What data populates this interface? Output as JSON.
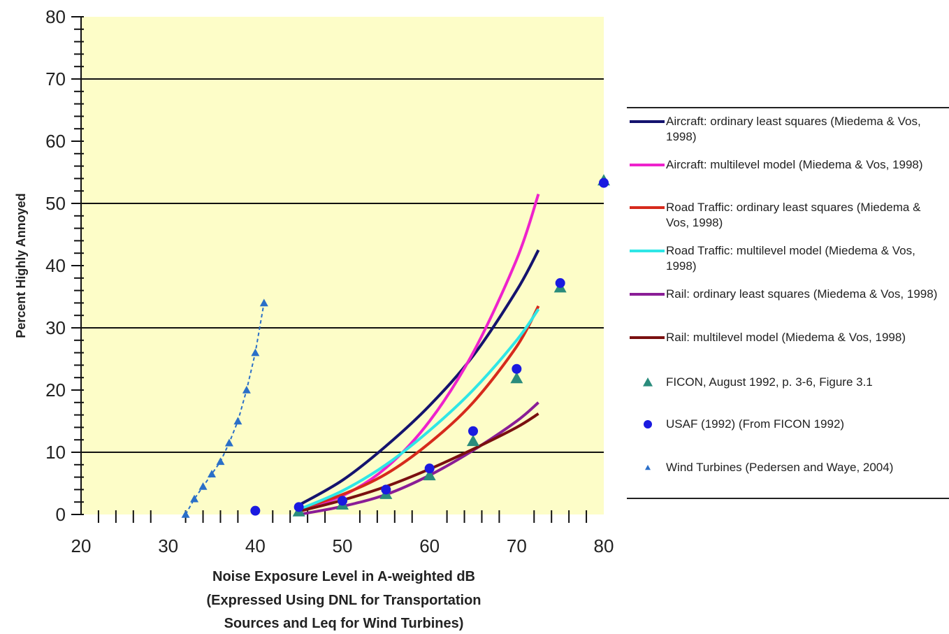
{
  "chart_data": {
    "type": "line",
    "xlabel_lines": [
      "Noise Exposure Level in A-weighted dB",
      "(Expressed Using DNL for Transportation",
      "Sources and Leq for Wind Turbines)"
    ],
    "ylabel": "Percent Highly Annoyed",
    "xlim": [
      20,
      80
    ],
    "ylim": [
      0,
      80
    ],
    "x_ticks": [
      20,
      30,
      40,
      50,
      60,
      70,
      80
    ],
    "y_ticks": [
      0,
      10,
      20,
      30,
      40,
      50,
      60,
      70,
      80
    ],
    "grid_y": [
      10,
      30,
      50,
      70
    ],
    "background": "#fdfdc8",
    "legend_position": "right",
    "series": [
      {
        "name": "Aircraft: ordinary least squares (Miedema & Vos, 1998)",
        "color": "#14136e",
        "style": "line",
        "x": [
          45,
          50,
          55,
          60,
          65,
          70,
          72.5
        ],
        "y": [
          1.5,
          5.5,
          11.0,
          17.5,
          25.5,
          36.0,
          42.5
        ]
      },
      {
        "name": "Aircraft: multilevel model (Miedema & Vos, 1998)",
        "color": "#ee22cc",
        "style": "line",
        "x": [
          45,
          50,
          55,
          60,
          65,
          70,
          72.5
        ],
        "y": [
          0.8,
          3.0,
          7.5,
          15.0,
          26.0,
          41.0,
          51.5
        ]
      },
      {
        "name": "Road Traffic: ordinary least squares (Miedema & Vos, 1998)",
        "color": "#d62a1c",
        "style": "line",
        "x": [
          45,
          50,
          55,
          60,
          65,
          70,
          72.5
        ],
        "y": [
          0.8,
          3.2,
          6.5,
          11.5,
          18.0,
          27.0,
          33.5
        ]
      },
      {
        "name": "Road Traffic: multilevel model (Miedema & Vos, 1998)",
        "color": "#2fe6e6",
        "style": "line",
        "x": [
          45,
          50,
          55,
          60,
          65,
          70,
          72.5
        ],
        "y": [
          0.8,
          3.8,
          8.0,
          13.5,
          20.0,
          28.0,
          33.0
        ]
      },
      {
        "name": "Rail: ordinary least squares (Miedema & Vos, 1998)",
        "color": "#8a1d96",
        "style": "line",
        "x": [
          45,
          50,
          55,
          60,
          65,
          70,
          72.5
        ],
        "y": [
          0.0,
          1.3,
          3.2,
          6.3,
          10.3,
          15.0,
          18.0
        ]
      },
      {
        "name": "Rail: multilevel model (Miedema & Vos, 1998)",
        "color": "#7a1010",
        "style": "line",
        "x": [
          45,
          50,
          55,
          60,
          65,
          70,
          72.5
        ],
        "y": [
          0.5,
          2.3,
          4.5,
          7.3,
          10.5,
          14.0,
          16.2
        ]
      },
      {
        "name": "FICON, August 1992, p. 3-6, Figure 3.1",
        "color": "#2a8c7c",
        "style": "triangle",
        "x": [
          45,
          50,
          55,
          60,
          65,
          70,
          75,
          80
        ],
        "y": [
          0.5,
          1.6,
          3.3,
          6.3,
          11.8,
          21.9,
          36.5,
          53.7
        ]
      },
      {
        "name": "USAF (1992) (From FICON 1992)",
        "color": "#1a1ae0",
        "style": "circle",
        "x": [
          40,
          45,
          50,
          55,
          60,
          65,
          70,
          75,
          80
        ],
        "y": [
          0.6,
          1.2,
          2.2,
          4.0,
          7.4,
          13.4,
          23.4,
          37.2,
          53.3
        ]
      },
      {
        "name": "Wind Turbines (Pedersen and Waye, 2004)",
        "color": "#2a6fc8",
        "style": "small-triangle-dashed",
        "x": [
          32,
          33,
          34,
          35,
          36,
          37,
          38,
          39,
          40,
          41
        ],
        "y": [
          0,
          2.5,
          4.5,
          6.5,
          8.5,
          11.5,
          15.0,
          20.0,
          26.0,
          34.0
        ]
      }
    ]
  }
}
